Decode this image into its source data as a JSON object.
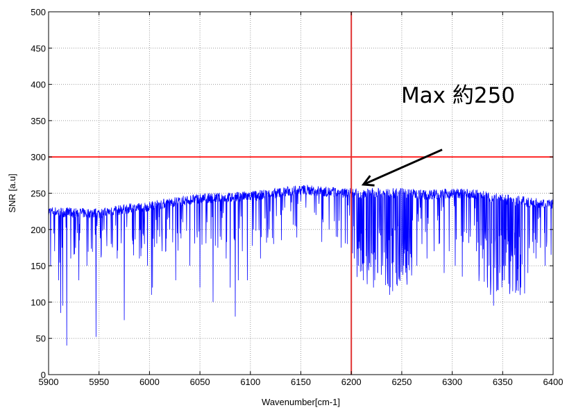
{
  "chart_data": {
    "type": "line",
    "title": "",
    "xlabel": "Wavenumber[cm-1]",
    "ylabel": "SNR [a.u]",
    "xlim": [
      5900,
      6400
    ],
    "ylim": [
      0,
      500
    ],
    "xticks": [
      5900,
      5950,
      6000,
      6050,
      6100,
      6150,
      6200,
      6250,
      6300,
      6350,
      6400
    ],
    "yticks": [
      0,
      50,
      100,
      150,
      200,
      250,
      300,
      350,
      400,
      450,
      500
    ],
    "grid": true,
    "legend": "none",
    "series": [
      {
        "color": "#0000ff",
        "baseline": {
          "x": [
            5900,
            5925,
            5950,
            5975,
            6000,
            6025,
            6050,
            6075,
            6100,
            6125,
            6150,
            6175,
            6200,
            6225,
            6250,
            6275,
            6300,
            6325,
            6350,
            6375,
            6400
          ],
          "y": [
            225,
            223,
            222,
            228,
            232,
            238,
            243,
            244,
            246,
            250,
            255,
            252,
            250,
            250,
            250,
            248,
            250,
            248,
            242,
            238,
            235
          ]
        },
        "dips": {
          "x": [
            5902,
            5906,
            5910,
            5912,
            5914,
            5918,
            5922,
            5930,
            5938,
            5947,
            5955,
            5962,
            5968,
            5975,
            5983,
            5990,
            5995,
            5998,
            6002,
            6003,
            6010,
            6016,
            6020,
            6026,
            6033,
            6040,
            6047,
            6050,
            6057,
            6063,
            6070,
            6076,
            6080,
            6085,
            6088,
            6092,
            6097,
            6103,
            6110,
            6117,
            6123,
            6130,
            6140,
            6155,
            6165,
            6172,
            6178,
            6185,
            6190,
            6196,
            6203,
            6207,
            6212,
            6217,
            6222,
            6226,
            6231,
            6236,
            6238,
            6241,
            6244,
            6248,
            6252,
            6256,
            6260,
            6265,
            6270,
            6275,
            6282,
            6287,
            6292,
            6297,
            6303,
            6310,
            6318,
            6324,
            6330,
            6335,
            6338,
            6341,
            6344,
            6347,
            6350,
            6353,
            6356,
            6360,
            6364,
            6368,
            6375,
            6383,
            6392,
            6398
          ],
          "y": [
            150,
            170,
            130,
            85,
            95,
            40,
            160,
            130,
            150,
            52,
            200,
            180,
            160,
            75,
            190,
            160,
            180,
            150,
            110,
            120,
            190,
            170,
            200,
            130,
            210,
            150,
            200,
            120,
            210,
            100,
            190,
            160,
            120,
            80,
            130,
            170,
            130,
            200,
            160,
            210,
            180,
            220,
            225,
            230,
            220,
            210,
            200,
            190,
            175,
            180,
            160,
            150,
            130,
            150,
            120,
            140,
            150,
            125,
            110,
            115,
            140,
            135,
            150,
            170,
            160,
            150,
            180,
            160,
            170,
            180,
            140,
            170,
            150,
            135,
            190,
            170,
            160,
            120,
            110,
            95,
            115,
            140,
            130,
            150,
            125,
            115,
            130,
            120,
            140,
            160,
            150,
            165
          ]
        }
      }
    ],
    "reference_lines": [
      {
        "orientation": "horizontal",
        "value": 300,
        "color": "#ff2020"
      },
      {
        "orientation": "vertical",
        "value": 6200,
        "color": "#e03030"
      }
    ],
    "annotations": [
      {
        "text": "Max 約250",
        "arrow_from": [
          6290,
          310
        ],
        "arrow_to": [
          6212,
          262
        ]
      }
    ]
  }
}
